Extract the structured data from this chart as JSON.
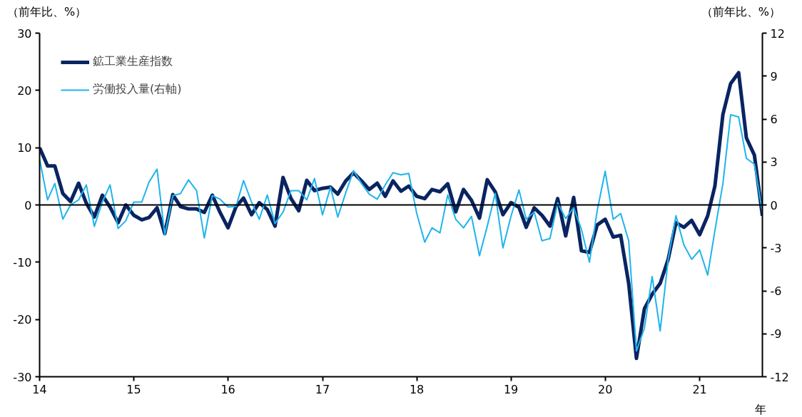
{
  "chart_data": {
    "type": "line",
    "ylabel": "（前年比、%）",
    "y2label": "（前年比、%）",
    "xlabel": "年",
    "xlim": [
      "2014-01",
      "2021-09"
    ],
    "xticks": [
      {
        "value": "2014-01",
        "label": "14"
      },
      {
        "value": "2015-01",
        "label": "15"
      },
      {
        "value": "2016-01",
        "label": "16"
      },
      {
        "value": "2017-01",
        "label": "17"
      },
      {
        "value": "2018-01",
        "label": "18"
      },
      {
        "value": "2019-01",
        "label": "19"
      },
      {
        "value": "2020-01",
        "label": "20"
      },
      {
        "value": "2021-01",
        "label": "21"
      }
    ],
    "ylim": [
      -30,
      30
    ],
    "yticks": [
      -30,
      -20,
      -10,
      0,
      10,
      20,
      30
    ],
    "y2lim": [
      -12,
      12
    ],
    "y2ticks": [
      -12,
      -9,
      -6,
      -3,
      0,
      3,
      6,
      9,
      12
    ],
    "grid": false,
    "legend": "top left",
    "line_style": "solid",
    "marker": "none",
    "ref_lines": [
      {
        "axis": "y",
        "value": 0,
        "color": "#000000"
      }
    ],
    "x": [
      "2014-01",
      "2014-02",
      "2014-03",
      "2014-04",
      "2014-05",
      "2014-06",
      "2014-07",
      "2014-08",
      "2014-09",
      "2014-10",
      "2014-11",
      "2014-12",
      "2015-01",
      "2015-02",
      "2015-03",
      "2015-04",
      "2015-05",
      "2015-06",
      "2015-07",
      "2015-08",
      "2015-09",
      "2015-10",
      "2015-11",
      "2015-12",
      "2016-01",
      "2016-02",
      "2016-03",
      "2016-04",
      "2016-05",
      "2016-06",
      "2016-07",
      "2016-08",
      "2016-09",
      "2016-10",
      "2016-11",
      "2016-12",
      "2017-01",
      "2017-02",
      "2017-03",
      "2017-04",
      "2017-05",
      "2017-06",
      "2017-07",
      "2017-08",
      "2017-09",
      "2017-10",
      "2017-11",
      "2017-12",
      "2018-01",
      "2018-02",
      "2018-03",
      "2018-04",
      "2018-05",
      "2018-06",
      "2018-07",
      "2018-08",
      "2018-09",
      "2018-10",
      "2018-11",
      "2018-12",
      "2019-01",
      "2019-02",
      "2019-03",
      "2019-04",
      "2019-05",
      "2019-06",
      "2019-07",
      "2019-08",
      "2019-09",
      "2019-10",
      "2019-11",
      "2019-12",
      "2020-01",
      "2020-02",
      "2020-03",
      "2020-04",
      "2020-05",
      "2020-06",
      "2020-07",
      "2020-08",
      "2020-09",
      "2020-10",
      "2020-11",
      "2020-12",
      "2021-01",
      "2021-02",
      "2021-03",
      "2021-04",
      "2021-05",
      "2021-06",
      "2021-07",
      "2021-08",
      "2021-09"
    ],
    "series": [
      {
        "name": "鉱工業生産指数",
        "color": "#0a2461",
        "values": [
          10.0,
          6.8,
          6.8,
          2.0,
          0.6,
          3.8,
          0.3,
          -2.1,
          1.7,
          -0.4,
          -3.1,
          0.0,
          -1.8,
          -2.6,
          -2.2,
          -0.5,
          -5.0,
          1.8,
          -0.3,
          -0.7,
          -0.7,
          -1.3,
          1.7,
          -1.3,
          -4.0,
          -0.3,
          1.2,
          -1.7,
          0.4,
          -0.8,
          -3.7,
          4.8,
          1.1,
          -1.0,
          4.3,
          2.5,
          2.9,
          3.1,
          1.9,
          4.2,
          5.6,
          4.2,
          2.7,
          3.8,
          1.5,
          4.2,
          2.4,
          3.3,
          1.5,
          1.1,
          2.7,
          2.3,
          3.7,
          -1.2,
          2.7,
          0.8,
          -2.3,
          4.4,
          2.3,
          -1.7,
          0.4,
          -0.4,
          -3.9,
          -0.5,
          -1.8,
          -3.7,
          1.1,
          -5.4,
          1.3,
          -8.0,
          -8.3,
          -3.5,
          -2.5,
          -5.6,
          -5.3,
          -13.7,
          -26.8,
          -18.1,
          -15.6,
          -13.7,
          -9.5,
          -3.1,
          -3.9,
          -2.7,
          -5.2,
          -1.9,
          3.3,
          15.8,
          21.2,
          23.1,
          11.7,
          8.7,
          -1.9
        ]
      },
      {
        "name": "労働投入量(右軸)",
        "color": "#1fb4ec",
        "axis": "y2",
        "values": [
          3.2,
          0.35,
          1.5,
          -1.0,
          0.0,
          0.35,
          1.4,
          -1.5,
          0.2,
          1.4,
          -1.65,
          -1.1,
          0.2,
          0.2,
          1.6,
          2.5,
          -2.1,
          0.65,
          0.8,
          1.75,
          1.0,
          -2.3,
          0.65,
          0.4,
          -0.15,
          -0.1,
          1.7,
          0.2,
          -1.0,
          0.7,
          -1.3,
          -0.5,
          1.0,
          1.0,
          0.35,
          1.85,
          -0.7,
          1.25,
          -0.85,
          0.85,
          2.4,
          1.5,
          0.75,
          0.4,
          1.4,
          2.25,
          2.1,
          2.2,
          -0.6,
          -2.6,
          -1.6,
          -1.95,
          0.7,
          -1.0,
          -1.6,
          -0.8,
          -3.55,
          -1.5,
          0.8,
          -3.0,
          -0.8,
          1.05,
          -1.0,
          -0.5,
          -2.5,
          -2.35,
          0.15,
          -0.95,
          -0.2,
          -1.7,
          -4.0,
          -0.4,
          2.35,
          -1.0,
          -0.6,
          -2.5,
          -10.2,
          -8.6,
          -5.0,
          -8.8,
          -3.8,
          -0.75,
          -2.8,
          -3.8,
          -3.15,
          -4.9,
          -1.8,
          1.5,
          6.3,
          6.15,
          3.25,
          2.85,
          -0.5
        ]
      }
    ]
  }
}
